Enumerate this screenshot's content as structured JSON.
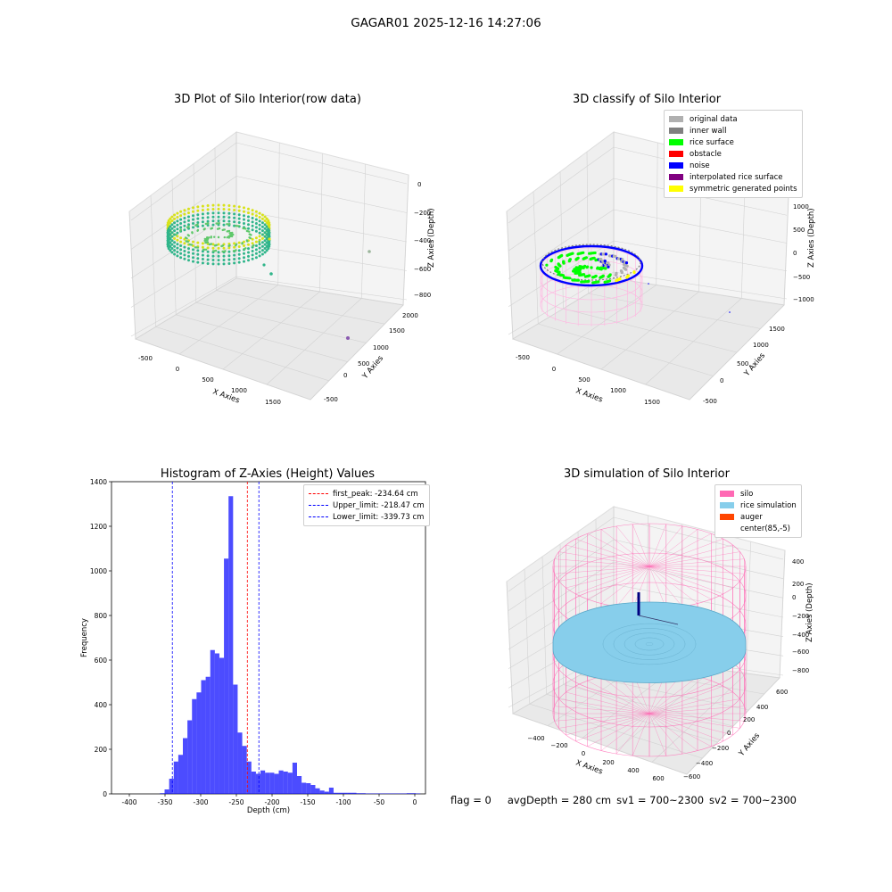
{
  "suptitle": "GAGAR01 2025-12-16 14:27:06",
  "status": {
    "flag": "flag = 0",
    "avg_depth": "avgDepth = 280 cm",
    "sv1": "sv1 = 700~2300",
    "sv2": "sv2 = 700~2300"
  },
  "chart_data": [
    {
      "type": "scatter",
      "title": "3D Plot of Silo Interior(row data)",
      "xlabel": "X Axies",
      "ylabel": "Y Axies",
      "zlabel": "Z Axies (Depth)",
      "x_ticks": [
        "-500",
        "0",
        "500",
        "1000",
        "1500"
      ],
      "y_ticks": [
        "-500",
        "0",
        "500",
        "1000",
        "1500",
        "2000"
      ],
      "z_ticks": [
        "0",
        "−200",
        "−400",
        "−600",
        "−800"
      ],
      "colors": {
        "low": "#2fb58a",
        "high": "#d7e219",
        "outlier": "#8a5ab0"
      }
    },
    {
      "type": "scatter",
      "title": "3D classify of Silo Interior",
      "xlabel": "X Axies",
      "ylabel": "Y Axies",
      "zlabel": "Z Axies (Depth)",
      "x_ticks": [
        "-500",
        "0",
        "500",
        "1000",
        "1500"
      ],
      "y_ticks": [
        "-500",
        "0",
        "500",
        "1000",
        "1500"
      ],
      "z_ticks": [
        "1000",
        "500",
        "0",
        "−500",
        "−1000"
      ],
      "legend": [
        {
          "name": "original data",
          "color": "#b0b0b0"
        },
        {
          "name": "inner wall",
          "color": "#808080"
        },
        {
          "name": "rice surface",
          "color": "#00ff00"
        },
        {
          "name": "obstacle",
          "color": "#ff0000"
        },
        {
          "name": "noise",
          "color": "#0000ff"
        },
        {
          "name": "interpolated rice surface",
          "color": "#800080"
        },
        {
          "name": "symmetric generated points",
          "color": "#ffff00"
        }
      ]
    },
    {
      "type": "bar",
      "title": "Histogram of Z-Axies (Height) Values",
      "xlabel": "Depth (cm)",
      "ylabel": "Frequency",
      "xlim": [
        -425,
        15
      ],
      "ylim": [
        0,
        1400
      ],
      "x_ticks": [
        -400,
        -350,
        -300,
        -250,
        -200,
        -150,
        -100,
        -50,
        0
      ],
      "y_ticks": [
        0,
        200,
        400,
        600,
        800,
        1000,
        1200,
        1400
      ],
      "bar_color": "#0000ff",
      "bin_width": 6.4,
      "bins_start": [
        -357,
        -350.6,
        -344.2,
        -337.8,
        -331.4,
        -325,
        -318.6,
        -312.2,
        -305.8,
        -299.4,
        -293,
        -286.6,
        -280.2,
        -273.8,
        -267.4,
        -261,
        -254.6,
        -248.2,
        -241.8,
        -235.4,
        -229,
        -222.6,
        -216.2,
        -209.8,
        -203.4,
        -197,
        -190.6,
        -184.2,
        -177.8,
        -171.4,
        -165,
        -158.6,
        -152.2,
        -145.8,
        -139.4,
        -133,
        -126.6,
        -120.2,
        -113.8,
        -107.4,
        -101,
        -94.6,
        -88.2,
        -81.8,
        -75.4,
        -69,
        -62.6,
        -56.2,
        -49.8,
        -43.4,
        -37,
        -30.6,
        -24.2,
        -17.8,
        -11.4,
        -5,
        1.4
      ],
      "values": [
        3,
        20,
        68,
        145,
        175,
        250,
        330,
        425,
        455,
        510,
        525,
        645,
        630,
        610,
        1055,
        1335,
        490,
        275,
        215,
        145,
        100,
        90,
        105,
        95,
        95,
        90,
        105,
        100,
        95,
        140,
        80,
        50,
        48,
        40,
        25,
        15,
        10,
        28,
        5,
        5,
        5,
        5,
        5,
        3,
        3,
        2,
        2,
        2,
        2,
        2,
        2,
        2,
        2,
        2,
        3,
        3,
        2
      ],
      "lines": [
        {
          "name": "first_peak: -234.64 cm",
          "x": -234.64,
          "color": "#ff0000"
        },
        {
          "name": "Upper_limit: -218.47 cm",
          "x": -218.47,
          "color": "#0000ff"
        },
        {
          "name": "Lower_limit: -339.73 cm",
          "x": -339.73,
          "color": "#0000ff"
        }
      ]
    },
    {
      "type": "area",
      "title": "3D simulation of Silo Interior",
      "xlabel": "X Axies",
      "ylabel": "Y Axies",
      "zlabel": "Z Axies (Depth)",
      "x_ticks": [
        "−400",
        "−200",
        "0",
        "200",
        "400",
        "600"
      ],
      "y_ticks": [
        "−600",
        "−400",
        "−200",
        "0",
        "200",
        "400",
        "600"
      ],
      "z_ticks": [
        "400",
        "200",
        "0",
        "−200",
        "−400",
        "−600",
        "−800"
      ],
      "legend": [
        {
          "name": "silo",
          "color": "#ff69b4"
        },
        {
          "name": "rice simulation",
          "color": "#87ceeb"
        },
        {
          "name": "auger",
          "color": "#ff4500"
        },
        {
          "name": "center(85,-5)",
          "color": "#ffffff"
        }
      ]
    }
  ]
}
